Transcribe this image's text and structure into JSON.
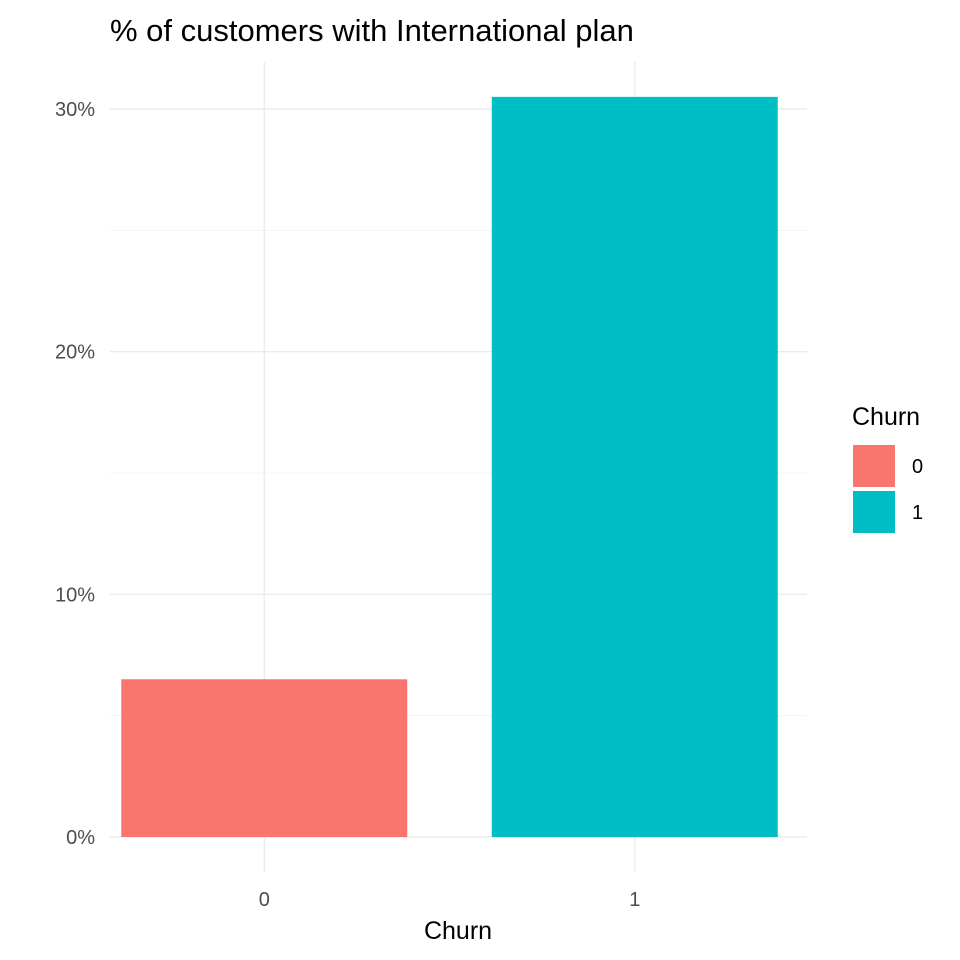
{
  "chart_data": {
    "type": "bar",
    "title": "% of customers with International plan",
    "xlabel": "Churn",
    "ylabel": "",
    "categories": [
      "0",
      "1"
    ],
    "values": [
      6.5,
      30.5
    ],
    "colors": [
      "#F8766D",
      "#00BFC4"
    ],
    "ylim": [
      0,
      32
    ],
    "yticks": [
      0,
      10,
      20,
      30
    ],
    "ytick_labels": [
      "0%",
      "10%",
      "20%",
      "30%"
    ],
    "grid": true,
    "legend": {
      "title": "Churn",
      "placement": "right",
      "entries": [
        {
          "label": "0",
          "color": "#F8766D"
        },
        {
          "label": "1",
          "color": "#00BFC4"
        }
      ]
    }
  }
}
